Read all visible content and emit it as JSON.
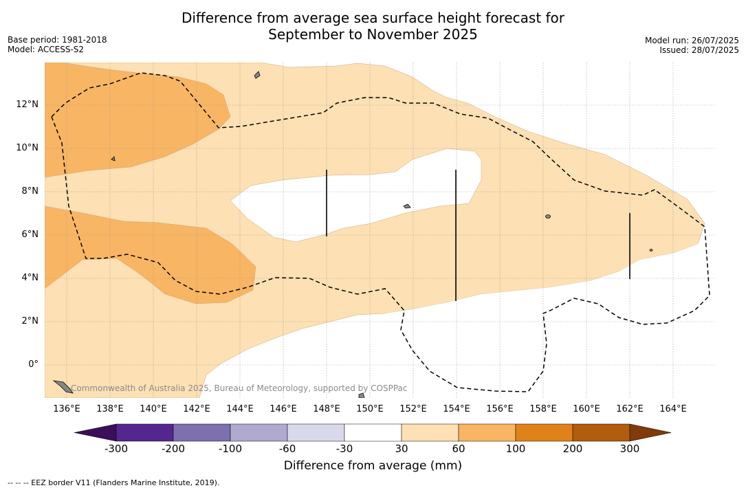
{
  "title_line1": "Difference from average sea surface height forecast for",
  "title_line2": "September to November 2025",
  "meta_left": {
    "base_period": "Base period: 1981-2018",
    "model": "Model: ACCESS-S2"
  },
  "meta_right": {
    "model_run": "Model run: 26/07/2025",
    "issued": "Issued: 28/07/2025"
  },
  "map": {
    "lat_labels": [
      "12°N",
      "10°N",
      "8°N",
      "6°N",
      "4°N",
      "2°N",
      "0°"
    ],
    "lon_labels": [
      "136°E",
      "138°E",
      "140°E",
      "142°E",
      "144°E",
      "146°E",
      "148°E",
      "150°E",
      "152°E",
      "154°E",
      "156°E",
      "158°E",
      "160°E",
      "162°E",
      "164°E"
    ],
    "credit": "Commonwealth of Australia 2025, Bureau of Meteorology, supported by COSPPac"
  },
  "colorbar": {
    "ticks": [
      "-300",
      "-200",
      "-100",
      "-60",
      "-30",
      "30",
      "60",
      "100",
      "200",
      "300"
    ],
    "colors": [
      "#3b0f5c",
      "#54278f",
      "#7e70ae",
      "#b0aad0",
      "#d9d9ec",
      "#ffffff",
      "#fde0b3",
      "#f8b563",
      "#e0821a",
      "#b25c0d",
      "#7f3b08"
    ],
    "label": "Difference from average (mm)"
  },
  "legend_note": "--  --  -- EEZ border V11 (Flanders Marine Institute, 2019)."
}
